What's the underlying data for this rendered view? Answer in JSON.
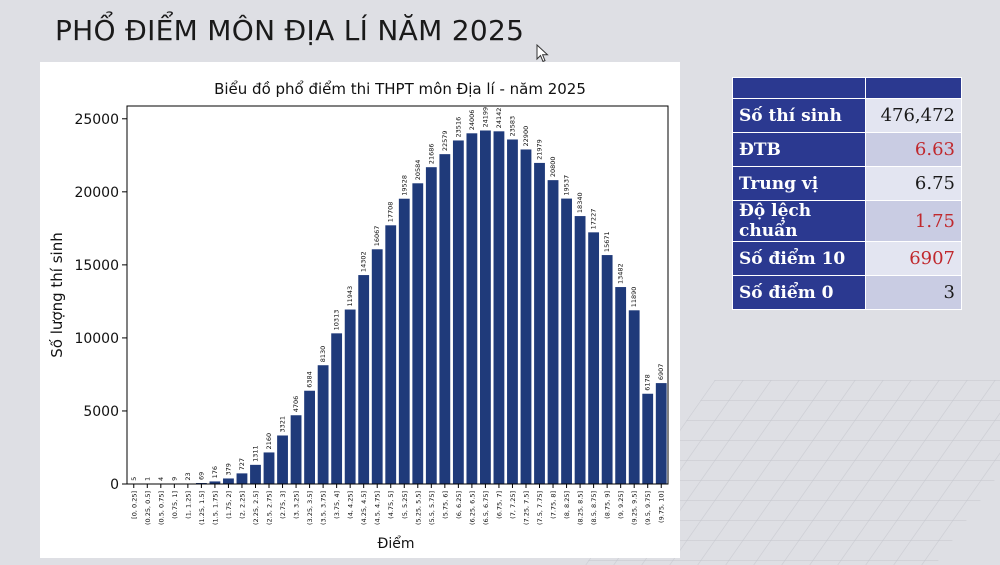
{
  "slide_title": "PHỔ ĐIỂM MÔN ĐỊA LÍ NĂM 2025",
  "chart_data": {
    "type": "bar",
    "title": "Biểu đồ phổ điểm thi THPT môn Địa lí - năm 2025",
    "xlabel": "Điểm",
    "ylabel": "Số lượng thí sinh",
    "ylim": [
      0,
      25000
    ],
    "yticks": [
      0,
      5000,
      10000,
      15000,
      20000,
      25000
    ],
    "bar_color": "#1f3a7a",
    "categories": [
      "[0, 0.25]",
      "(0.25, 0.5]",
      "(0.5, 0.75]",
      "(0.75, 1]",
      "(1, 1.25]",
      "(1.25, 1.5]",
      "(1.5, 1.75]",
      "(1.75, 2]",
      "(2, 2.25]",
      "(2.25, 2.5]",
      "(2.5, 2.75]",
      "(2.75, 3]",
      "(3, 3.25]",
      "(3.25, 3.5]",
      "(3.5, 3.75]",
      "(3.75, 4]",
      "(4, 4.25]",
      "(4.25, 4.5]",
      "(4.5, 4.75]",
      "(4.75, 5]",
      "(5, 5.25]",
      "(5.25, 5.5]",
      "(5.5, 5.75]",
      "(5.75, 6]",
      "(6, 6.25]",
      "(6.25, 6.5]",
      "(6.5, 6.75]",
      "(6.75, 7]",
      "(7, 7.25]",
      "(7.25, 7.5]",
      "(7.5, 7.75]",
      "(7.75, 8]",
      "(8, 8.25]",
      "(8.25, 8.5]",
      "(8.5, 8.75]",
      "(8.75, 9]",
      "(9, 9.25]",
      "(9.25, 9.5]",
      "(9.5, 9.75]",
      "(9.75, 10]"
    ],
    "values": [
      5,
      1,
      4,
      9,
      23,
      69,
      176,
      379,
      727,
      1311,
      2160,
      3321,
      4706,
      6384,
      8130,
      10313,
      11943,
      14302,
      16067,
      17708,
      19528,
      20584,
      21686,
      22579,
      23516,
      24006,
      24199,
      24142,
      23583,
      22900,
      21979,
      20800,
      19537,
      18340,
      17227,
      15671,
      13482,
      11890,
      6178,
      6907
    ]
  },
  "stats_table": {
    "rows": [
      {
        "label": "Số thí sinh",
        "value": "476,472",
        "highlight": false
      },
      {
        "label": "ĐTB",
        "value": "6.63",
        "highlight": true
      },
      {
        "label": "Trung vị",
        "value": "6.75",
        "highlight": false
      },
      {
        "label": "Độ lệch chuẩn",
        "value": "1.75",
        "highlight": true
      },
      {
        "label": "Số điểm 10",
        "value": "6907",
        "highlight": true
      },
      {
        "label": "Số điểm 0",
        "value": "3",
        "highlight": false
      }
    ]
  }
}
